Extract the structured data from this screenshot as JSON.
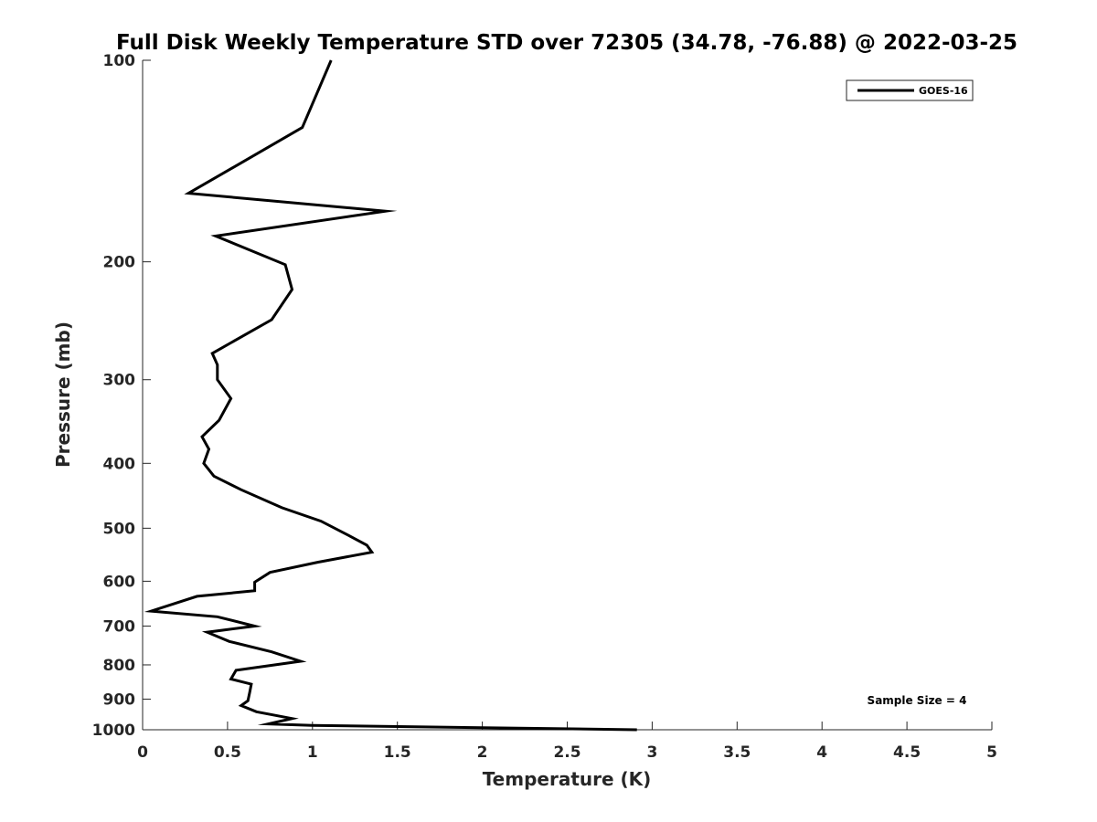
{
  "chart_data": {
    "type": "line",
    "title": "Full Disk Weekly Temperature STD over 72305 (34.78, -76.88) @ 2022-03-25",
    "xlabel": "Temperature (K)",
    "ylabel": "Pressure (mb)",
    "xlim": [
      0,
      5
    ],
    "ylim": [
      1000,
      100
    ],
    "y_scale": "log",
    "y_reversed": true,
    "grid": false,
    "legend_position": "top-right",
    "x_ticks": [
      "0",
      "0.5",
      "1",
      "1.5",
      "2",
      "2.5",
      "3",
      "3.5",
      "4",
      "4.5",
      "5"
    ],
    "y_ticks": [
      "100",
      "200",
      "300",
      "400",
      "500",
      "600",
      "700",
      "800",
      "900",
      "1000"
    ],
    "annotation": "Sample Size = 4",
    "series": [
      {
        "name": "GOES-16",
        "color": "#000000",
        "points": [
          [
            1.11,
            100
          ],
          [
            0.94,
            126
          ],
          [
            0.27,
            158
          ],
          [
            1.43,
            168
          ],
          [
            0.43,
            183
          ],
          [
            0.84,
            202
          ],
          [
            0.88,
            220
          ],
          [
            0.76,
            244
          ],
          [
            0.41,
            274
          ],
          [
            0.44,
            285
          ],
          [
            0.44,
            300
          ],
          [
            0.52,
            320
          ],
          [
            0.45,
            345
          ],
          [
            0.35,
            365
          ],
          [
            0.39,
            381
          ],
          [
            0.36,
            400
          ],
          [
            0.42,
            418
          ],
          [
            0.58,
            438
          ],
          [
            0.82,
            466
          ],
          [
            1.05,
            488
          ],
          [
            1.21,
            512
          ],
          [
            1.32,
            530
          ],
          [
            1.35,
            543
          ],
          [
            1.03,
            562
          ],
          [
            0.75,
            582
          ],
          [
            0.66,
            602
          ],
          [
            0.66,
            620
          ],
          [
            0.32,
            632
          ],
          [
            0.05,
            665
          ],
          [
            0.44,
            678
          ],
          [
            0.66,
            700
          ],
          [
            0.38,
            715
          ],
          [
            0.51,
            738
          ],
          [
            0.76,
            765
          ],
          [
            0.93,
            790
          ],
          [
            0.55,
            815
          ],
          [
            0.52,
            840
          ],
          [
            0.64,
            855
          ],
          [
            0.63,
            880
          ],
          [
            0.62,
            905
          ],
          [
            0.58,
            920
          ],
          [
            0.67,
            940
          ],
          [
            0.88,
            962
          ],
          [
            0.74,
            980
          ],
          [
            1.0,
            985
          ],
          [
            2.91,
            1000
          ]
        ]
      }
    ]
  }
}
